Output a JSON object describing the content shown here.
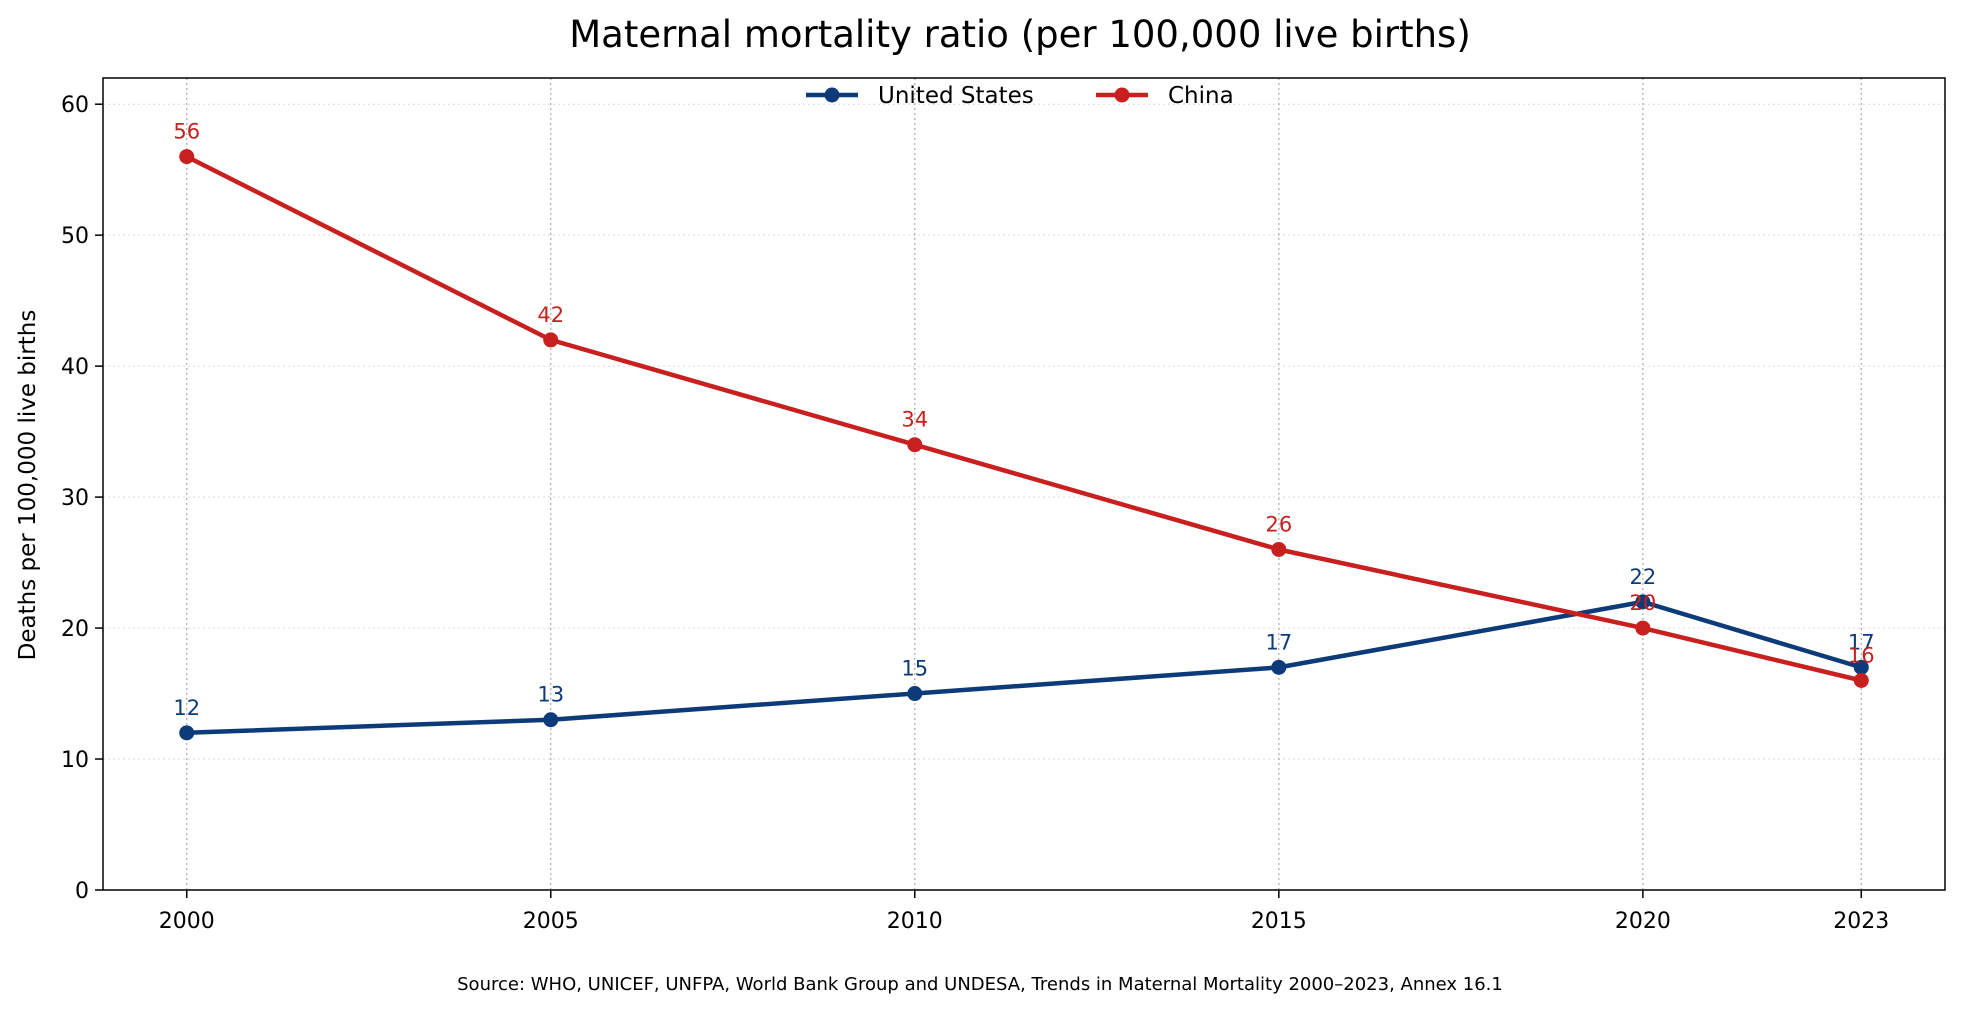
{
  "chart_data": {
    "type": "line",
    "title": "Maternal mortality ratio (per 100,000 live births)",
    "xlabel": "",
    "ylabel": "Deaths per 100,000 live births",
    "x": [
      2000,
      2005,
      2010,
      2015,
      2020,
      2023
    ],
    "x_tick_labels": [
      "2000",
      "2005",
      "2010",
      "2015",
      "2020",
      "2023"
    ],
    "xlim": [
      1998.85,
      2024.15
    ],
    "ylim": [
      0,
      62
    ],
    "y_ticks": [
      0,
      10,
      20,
      30,
      40,
      50,
      60
    ],
    "grid": true,
    "legend_placement": "top-center",
    "series": [
      {
        "name": "United States",
        "color": "#0d3b7a",
        "values": [
          12,
          13,
          15,
          17,
          22,
          17
        ]
      },
      {
        "name": "China",
        "color": "#c8201f",
        "values": [
          56,
          42,
          34,
          26,
          20,
          16
        ]
      }
    ],
    "source": "Source: WHO, UNICEF, UNFPA, World Bank Group and UNDESA, Trends in Maternal Mortality 2000–2023, Annex 16.1"
  }
}
